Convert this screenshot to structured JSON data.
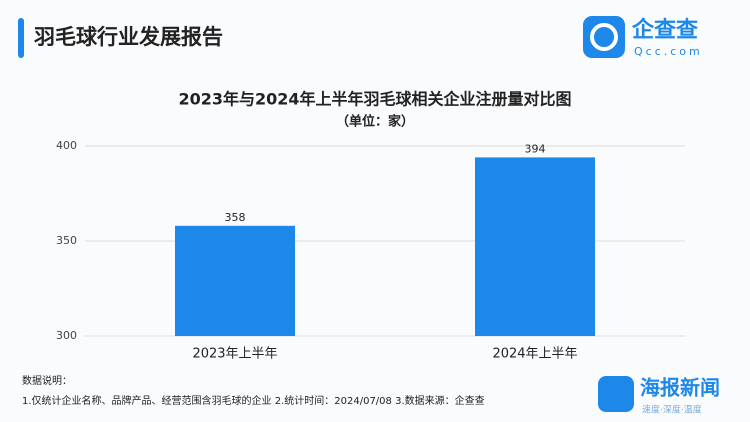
{
  "header": {
    "title": "羽毛球行业发展报告",
    "logo_name": "企查查",
    "logo_domain": "Qcc.com"
  },
  "chart_data": {
    "type": "bar",
    "title": "2023年与2024年上半年羽毛球相关企业注册量对比图",
    "subtitle": "（单位：家）",
    "categories": [
      "2023年上半年",
      "2024年上半年"
    ],
    "values": [
      358,
      394
    ],
    "color": "#1e88ea",
    "ylim": [
      300,
      400
    ],
    "yticks": [
      300,
      350,
      400
    ],
    "grid": true
  },
  "notes": {
    "heading": "数据说明：",
    "lines": [
      "1.仅统计企业名称、品牌产品、经营范围含羽毛球的企业   2.统计时间：2024/07/08   3.数据来源：企查查"
    ]
  },
  "footer_logo": {
    "name": "海报新闻",
    "slogan": "速度·深度·温度"
  }
}
